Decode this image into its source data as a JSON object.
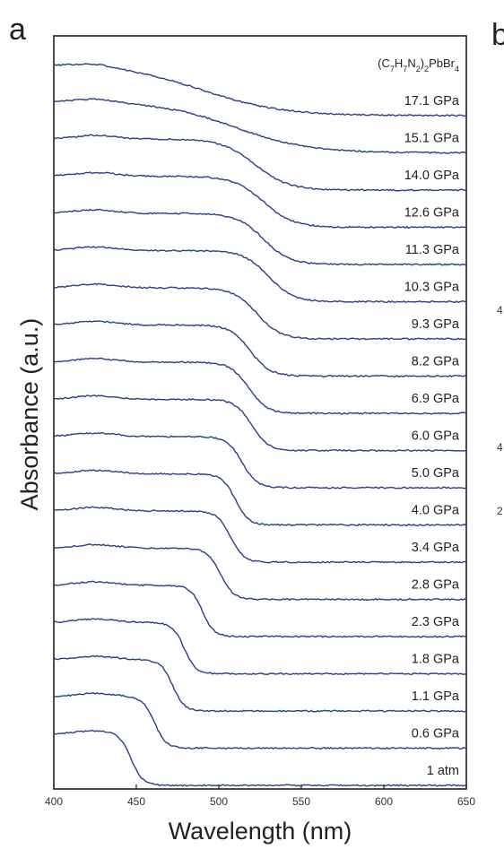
{
  "panel_labels": {
    "left": "a",
    "right": "b"
  },
  "right_panel_fragments": [
    "4",
    "4",
    "2"
  ],
  "chart_data": {
    "type": "line",
    "compound": {
      "formula_parts": [
        "(C",
        "7",
        "H",
        "7",
        "N",
        "2",
        ")",
        "2",
        "PbBr",
        "4"
      ],
      "subscript_flags": [
        false,
        true,
        false,
        true,
        false,
        true,
        false,
        true,
        false,
        true
      ]
    },
    "xlabel": "Wavelength (nm)",
    "ylabel": "Absorbance (a.u.)",
    "xlim": [
      400,
      650
    ],
    "x_ticks": [
      400,
      450,
      500,
      550,
      600,
      650
    ],
    "y_scale": "stacked, arbitrary units",
    "grid": false,
    "legend": "labels at right end of each curve",
    "series": [
      {
        "name": "1 atm",
        "edge": 447,
        "width": 3.5
      },
      {
        "name": "0.6 GPa",
        "edge": 461,
        "width": 3.5
      },
      {
        "name": "1.1 GPa",
        "edge": 472,
        "width": 3.5
      },
      {
        "name": "1.8 GPa",
        "edge": 479,
        "width": 3.5
      },
      {
        "name": "2.3 GPa",
        "edge": 490,
        "width": 3.5
      },
      {
        "name": "2.8 GPa",
        "edge": 501,
        "width": 4
      },
      {
        "name": "3.4 GPa",
        "edge": 507,
        "width": 4
      },
      {
        "name": "4.0 GPa",
        "edge": 510,
        "width": 4
      },
      {
        "name": "5.0 GPa",
        "edge": 514,
        "width": 4.5
      },
      {
        "name": "6.0 GPa",
        "edge": 520,
        "width": 5
      },
      {
        "name": "6.9 GPa",
        "edge": 518,
        "width": 5.5
      },
      {
        "name": "8.2 GPa",
        "edge": 519,
        "width": 6
      },
      {
        "name": "9.3 GPa",
        "edge": 523,
        "width": 7
      },
      {
        "name": "10.3 GPa",
        "edge": 530,
        "width": 7.5
      },
      {
        "name": "11.3 GPa",
        "edge": 527,
        "width": 8
      },
      {
        "name": "12.6 GPa",
        "edge": 527,
        "width": 9
      },
      {
        "name": "14.0 GPa",
        "edge": 522,
        "width": 10
      },
      {
        "name": "15.1 GPa",
        "edge": 510,
        "width": 22
      },
      {
        "name": "17.1 GPa",
        "edge": 490,
        "width": 24
      }
    ]
  }
}
